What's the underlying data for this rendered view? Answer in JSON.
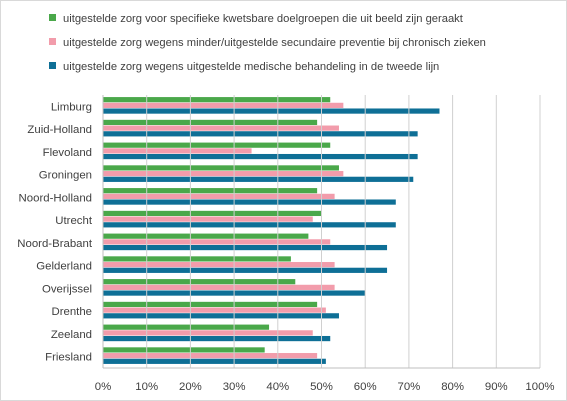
{
  "chart_data": {
    "type": "bar",
    "orientation": "horizontal",
    "categories": [
      "Limburg",
      "Zuid-Holland",
      "Flevoland",
      "Groningen",
      "Noord-Holland",
      "Utrecht",
      "Noord-Brabant",
      "Gelderland",
      "Overijssel",
      "Drenthe",
      "Zeeland",
      "Friesland"
    ],
    "series": [
      {
        "name": "uitgestelde zorg voor specifieke kwetsbare doelgroepen die uit beeld zijn geraakt",
        "color": "#4aa84a",
        "values": [
          0.52,
          0.49,
          0.52,
          0.54,
          0.49,
          0.5,
          0.47,
          0.43,
          0.44,
          0.49,
          0.38,
          0.37
        ]
      },
      {
        "name": "uitgestelde zorg wegens minder/uitgestelde secundaire preventie bij chronisch zieken",
        "color": "#f29cab",
        "values": [
          0.55,
          0.54,
          0.34,
          0.55,
          0.53,
          0.48,
          0.52,
          0.53,
          0.53,
          0.51,
          0.48,
          0.49
        ]
      },
      {
        "name": "uitgestelde zorg wegens uitgestelde medische behandeling in de tweede lijn",
        "color": "#0e6f96",
        "values": [
          0.77,
          0.72,
          0.72,
          0.71,
          0.67,
          0.67,
          0.65,
          0.65,
          0.6,
          0.54,
          0.52,
          0.51
        ]
      }
    ],
    "xlim": [
      0,
      1
    ],
    "x_ticks": [
      0,
      0.1,
      0.2,
      0.3,
      0.4,
      0.5,
      0.6,
      0.7,
      0.8,
      0.9,
      1.0
    ],
    "x_tick_labels": [
      "0%",
      "10%",
      "20%",
      "30%",
      "40%",
      "50%",
      "60%",
      "70%",
      "80%",
      "90%",
      "100%"
    ],
    "grid": "vertical major gridlines",
    "legend_position": "top"
  }
}
